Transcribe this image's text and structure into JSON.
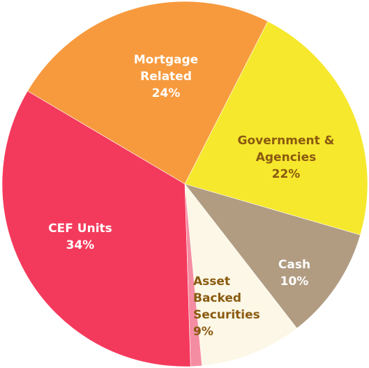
{
  "chart_data": {
    "type": "pie",
    "categories": [
      "Mortgage Related",
      "Government & Agencies",
      "Cash",
      "Asset Backed Securities",
      null,
      "CEF Units"
    ],
    "values": [
      24,
      22,
      10,
      9,
      1,
      34
    ],
    "value_labels": [
      "24%",
      "22%",
      "10%",
      "9%",
      null,
      "34%"
    ],
    "colors": [
      "#f79a3e",
      "#f6e82c",
      "#b19c82",
      "#fcf7e6",
      "#f58da2",
      "#f43a5c"
    ],
    "label_colors": [
      "#ffffff",
      "#8a5a10",
      "#ffffff",
      "#8a5a10",
      null,
      "#ffffff"
    ]
  }
}
